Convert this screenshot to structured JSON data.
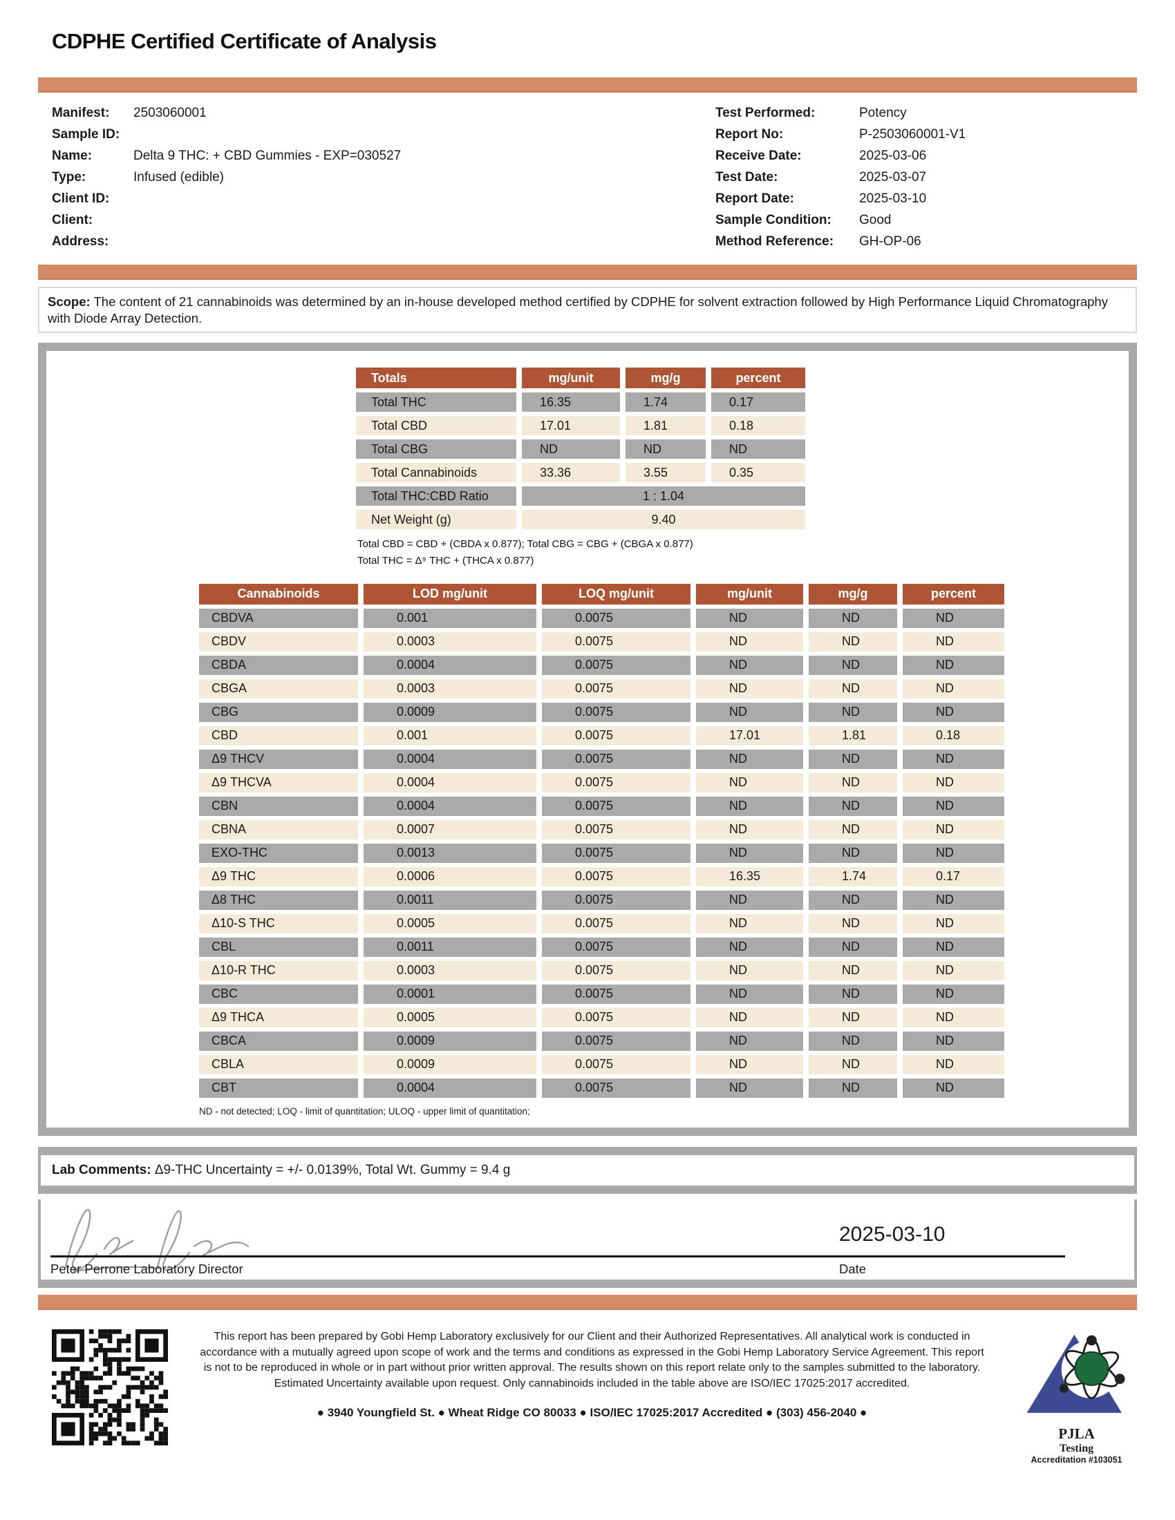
{
  "title": "CDPHE Certified Certificate of Analysis",
  "info_left": [
    {
      "label": "Manifest:",
      "value": "2503060001"
    },
    {
      "label": "Sample ID:",
      "value": ""
    },
    {
      "label": "Name:",
      "value": "Delta 9 THC: + CBD Gummies - EXP=030527"
    },
    {
      "label": "Type:",
      "value": "Infused (edible)"
    },
    {
      "label": "Client ID:",
      "value": ""
    },
    {
      "label": "Client:",
      "value": ""
    },
    {
      "label": "Address:",
      "value": ""
    }
  ],
  "info_right": [
    {
      "label": "Test Performed:",
      "value": "Potency"
    },
    {
      "label": "Report No:",
      "value": "P-2503060001-V1"
    },
    {
      "label": "Receive Date:",
      "value": "2025-03-06"
    },
    {
      "label": "Test Date:",
      "value": "2025-03-07"
    },
    {
      "label": "Report Date:",
      "value": "2025-03-10"
    },
    {
      "label": "Sample Condition:",
      "value": "Good"
    },
    {
      "label": "Method Reference:",
      "value": "GH-OP-06"
    }
  ],
  "scope_label": "Scope:",
  "scope_text": "The content of 21 cannabinoids was determined by an in-house developed method certified by CDPHE for solvent extraction followed by High Performance Liquid Chromatography with Diode Array Detection.",
  "totals_table": {
    "headers": [
      "Totals",
      "mg/unit",
      "mg/g",
      "percent"
    ],
    "rows": [
      [
        "Total THC",
        "16.35",
        "1.74",
        "0.17"
      ],
      [
        "Total CBD",
        "17.01",
        "1.81",
        "0.18"
      ],
      [
        "Total CBG",
        "ND",
        "ND",
        "ND"
      ],
      [
        "Total Cannabinoids",
        "33.36",
        "3.55",
        "0.35"
      ]
    ],
    "ratio_label": "Total THC:CBD Ratio",
    "ratio_value": "1 : 1.04",
    "net_weight_label": "Net Weight (g)",
    "net_weight_value": "9.40"
  },
  "formula_note_1": "Total CBD = CBD + (CBDA x 0.877); Total CBG = CBG + (CBGA x 0.877)",
  "formula_note_2": "Total THC = Δ⁹ THC + (THCA x 0.877)",
  "cannabinoids_table": {
    "headers": [
      "Cannabinoids",
      "LOD mg/unit",
      "LOQ mg/unit",
      "mg/unit",
      "mg/g",
      "percent"
    ],
    "rows": [
      [
        "CBDVA",
        "0.001",
        "0.0075",
        "ND",
        "ND",
        "ND"
      ],
      [
        "CBDV",
        "0.0003",
        "0.0075",
        "ND",
        "ND",
        "ND"
      ],
      [
        "CBDA",
        "0.0004",
        "0.0075",
        "ND",
        "ND",
        "ND"
      ],
      [
        "CBGA",
        "0.0003",
        "0.0075",
        "ND",
        "ND",
        "ND"
      ],
      [
        "CBG",
        "0.0009",
        "0.0075",
        "ND",
        "ND",
        "ND"
      ],
      [
        "CBD",
        "0.001",
        "0.0075",
        "17.01",
        "1.81",
        "0.18"
      ],
      [
        "Δ9 THCV",
        "0.0004",
        "0.0075",
        "ND",
        "ND",
        "ND"
      ],
      [
        "Δ9 THCVA",
        "0.0004",
        "0.0075",
        "ND",
        "ND",
        "ND"
      ],
      [
        "CBN",
        "0.0004",
        "0.0075",
        "ND",
        "ND",
        "ND"
      ],
      [
        "CBNA",
        "0.0007",
        "0.0075",
        "ND",
        "ND",
        "ND"
      ],
      [
        "EXO-THC",
        "0.0013",
        "0.0075",
        "ND",
        "ND",
        "ND"
      ],
      [
        "Δ9 THC",
        "0.0006",
        "0.0075",
        "16.35",
        "1.74",
        "0.17"
      ],
      [
        "Δ8 THC",
        "0.0011",
        "0.0075",
        "ND",
        "ND",
        "ND"
      ],
      [
        "Δ10-S THC",
        "0.0005",
        "0.0075",
        "ND",
        "ND",
        "ND"
      ],
      [
        "CBL",
        "0.0011",
        "0.0075",
        "ND",
        "ND",
        "ND"
      ],
      [
        "Δ10-R THC",
        "0.0003",
        "0.0075",
        "ND",
        "ND",
        "ND"
      ],
      [
        "CBC",
        "0.0001",
        "0.0075",
        "ND",
        "ND",
        "ND"
      ],
      [
        "Δ9 THCA",
        "0.0005",
        "0.0075",
        "ND",
        "ND",
        "ND"
      ],
      [
        "CBCA",
        "0.0009",
        "0.0075",
        "ND",
        "ND",
        "ND"
      ],
      [
        "CBLA",
        "0.0009",
        "0.0075",
        "ND",
        "ND",
        "ND"
      ],
      [
        "CBT",
        "0.0004",
        "0.0075",
        "ND",
        "ND",
        "ND"
      ]
    ]
  },
  "table_footnote": "ND - not detected; LOQ - limit of quantitation; ULOQ - upper limit of quantitation;",
  "lab_comments_label": "Lab Comments:",
  "lab_comments_text": " Δ9-THC Uncertainty = +/- 0.0139%, Total Wt. Gummy = 9.4 g",
  "signature": {
    "date_value": "2025-03-10",
    "name_title": "Peter Perrone Laboratory Director",
    "date_label": "Date"
  },
  "footer": {
    "disclaimer": "This report has been prepared by Gobi Hemp Laboratory exclusively for our Client and their Authorized Representatives. All analytical work is conducted in accordance with a mutually agreed upon scope of work and the terms and conditions as expressed in the Gobi Hemp Laboratory Service Agreement. This report is not to be reproduced in whole or in part without prior written approval. The results shown on this report relate only to the samples submitted to the laboratory. Estimated Uncertainty available upon request. Only cannabinoids included in the table above are ISO/IEC 17025:2017 accredited.",
    "address_line": "● 3940 Youngfield St. ● Wheat Ridge CO 80033 ● ISO/IEC 17025:2017 Accredited ● (303) 456-2040 ●",
    "pjla_line1": "PJLA",
    "pjla_line2": "Testing",
    "pjla_line3": "Accreditation #103051"
  },
  "colors": {
    "accent_bar": "#d78a66",
    "table_header": "#ae5536",
    "row_gray": "#a8aba7",
    "row_cream": "#f4ead7",
    "frame_gray": "#a9a9a9"
  }
}
